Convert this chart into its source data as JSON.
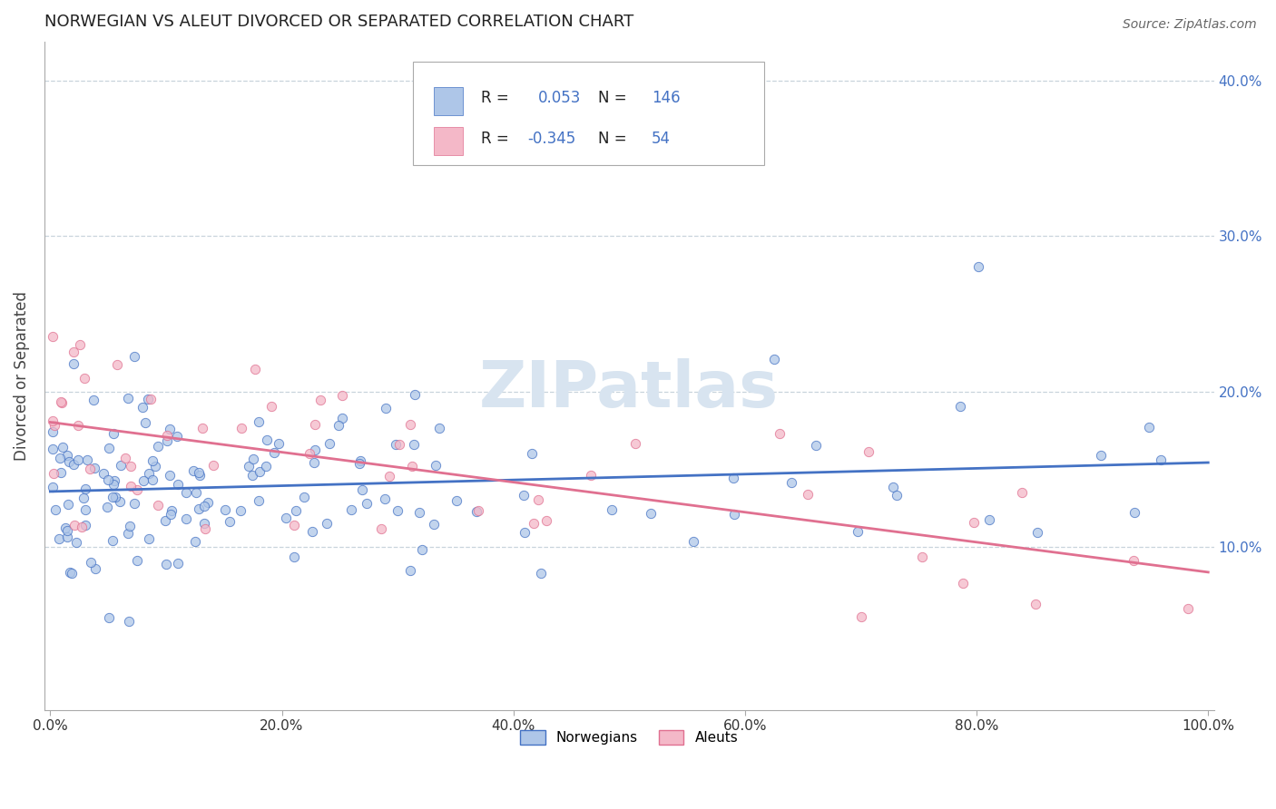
{
  "title": "NORWEGIAN VS ALEUT DIVORCED OR SEPARATED CORRELATION CHART",
  "source": "Source: ZipAtlas.com",
  "ylabel": "Divorced or Separated",
  "r_norwegian": 0.053,
  "n_norwegian": 146,
  "r_aleut": -0.345,
  "n_aleut": 54,
  "norwegian_fill": "#aec6e8",
  "norwegian_edge": "#4472c4",
  "aleut_fill": "#f4b8c8",
  "aleut_edge": "#e07090",
  "norwegian_line_color": "#4472c4",
  "aleut_line_color": "#e07090",
  "grid_color": "#c8d4dc",
  "watermark_color": "#d8e4f0",
  "background_color": "#ffffff",
  "legend_label_norwegian": "Norwegians",
  "legend_label_aleut": "Aleuts",
  "title_fontsize": 13,
  "tick_fontsize": 11,
  "ylabel_fontsize": 12,
  "source_fontsize": 10
}
